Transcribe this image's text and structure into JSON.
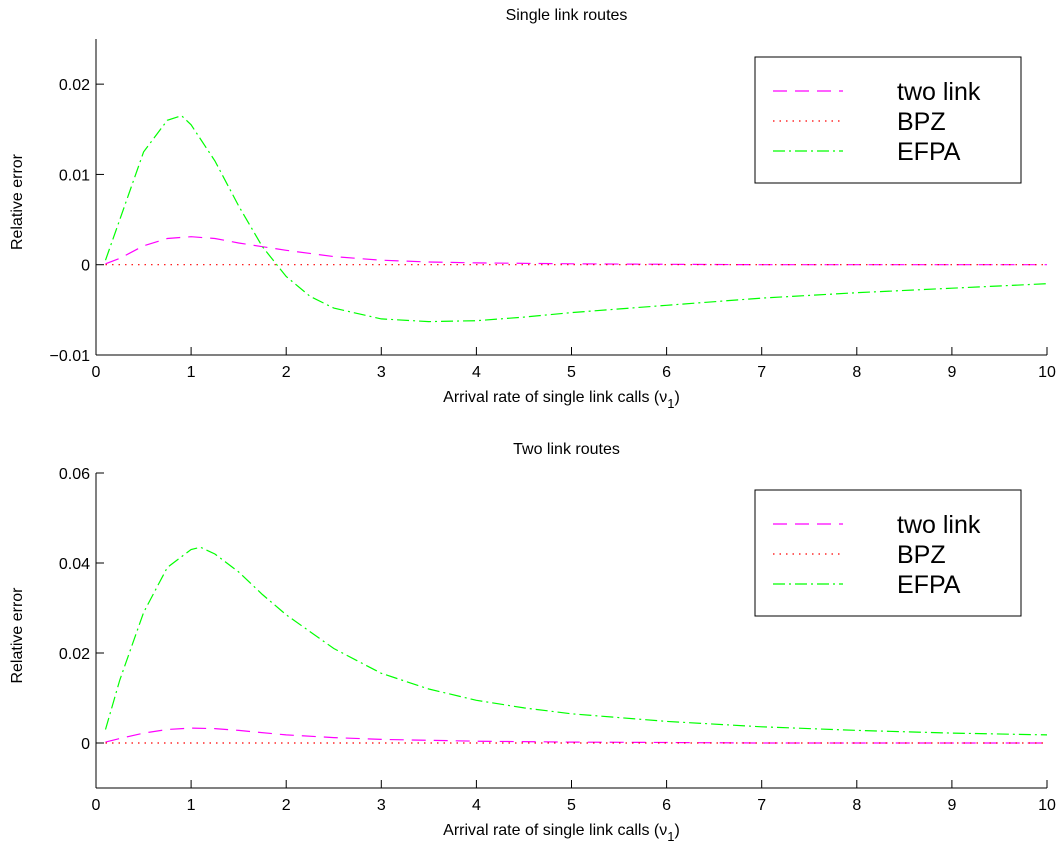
{
  "chart_data": [
    {
      "type": "line",
      "title": "Single link routes",
      "xlabel": "Arrival rate of single link calls (ν",
      "xlabel_sub": "1",
      "xlabel_close": ")",
      "ylabel": "Relative error",
      "xlim": [
        0,
        10
      ],
      "ylim": [
        -0.01,
        0.025
      ],
      "xticks": [
        0,
        1,
        2,
        3,
        4,
        5,
        6,
        7,
        8,
        9,
        10
      ],
      "xtick_labels": [
        "0",
        "1",
        "2",
        "3",
        "4",
        "5",
        "6",
        "7",
        "8",
        "9",
        "10"
      ],
      "yticks": [
        -0.01,
        0,
        0.01,
        0.02
      ],
      "ytick_labels": [
        "−0.01",
        "0",
        "0.01",
        "0.02"
      ],
      "grid": false,
      "legend_position": "top-right",
      "series": [
        {
          "name": "two link",
          "color": "#ff00ff",
          "dash": "dash",
          "x": [
            0.1,
            0.25,
            0.5,
            0.75,
            1.0,
            1.25,
            1.5,
            1.75,
            2.0,
            2.5,
            3.0,
            3.5,
            4.0,
            5.0,
            6.0,
            7.0,
            8.0,
            9.0,
            10.0
          ],
          "y": [
            0.0001,
            0.0007,
            0.0021,
            0.0029,
            0.0031,
            0.0029,
            0.0024,
            0.002,
            0.0016,
            0.0009,
            0.0005,
            0.0003,
            0.0002,
            0.0001,
            5e-05,
            0.0,
            0.0,
            0.0,
            0.0
          ]
        },
        {
          "name": "BPZ",
          "color": "#ff0000",
          "dash": "dot",
          "x": [
            0.1,
            10.0
          ],
          "y": [
            0.0,
            0.0
          ]
        },
        {
          "name": "EFPA",
          "color": "#00ff00",
          "dash": "dashdot",
          "x": [
            0.1,
            0.25,
            0.5,
            0.75,
            0.9,
            1.0,
            1.25,
            1.5,
            1.75,
            2.0,
            2.25,
            2.5,
            3.0,
            3.5,
            4.0,
            4.5,
            5.0,
            6.0,
            7.0,
            8.0,
            9.0,
            10.0
          ],
          "y": [
            0.0005,
            0.005,
            0.0125,
            0.016,
            0.0165,
            0.0155,
            0.0115,
            0.0065,
            0.002,
            -0.0013,
            -0.0035,
            -0.0048,
            -0.006,
            -0.0063,
            -0.0062,
            -0.0058,
            -0.0053,
            -0.0045,
            -0.0037,
            -0.0031,
            -0.0026,
            -0.0021
          ]
        }
      ]
    },
    {
      "type": "line",
      "title": "Two link routes",
      "xlabel": "Arrival rate of single link calls (ν",
      "xlabel_sub": "1",
      "xlabel_close": ")",
      "ylabel": "Relative error",
      "xlim": [
        0,
        10
      ],
      "ylim": [
        -0.01,
        0.06
      ],
      "xticks": [
        0,
        1,
        2,
        3,
        4,
        5,
        6,
        7,
        8,
        9,
        10
      ],
      "xtick_labels": [
        "0",
        "1",
        "2",
        "3",
        "4",
        "5",
        "6",
        "7",
        "8",
        "9",
        "10"
      ],
      "yticks": [
        0,
        0.02,
        0.04,
        0.06
      ],
      "ytick_labels": [
        "0",
        "0.02",
        "0.04",
        "0.06"
      ],
      "grid": false,
      "legend_position": "top-right",
      "series": [
        {
          "name": "two link",
          "color": "#ff00ff",
          "dash": "dash",
          "x": [
            0.1,
            0.25,
            0.5,
            0.75,
            1.0,
            1.25,
            1.5,
            2.0,
            2.5,
            3.0,
            4.0,
            5.0,
            6.0,
            7.0,
            8.0,
            9.0,
            10.0
          ],
          "y": [
            0.0002,
            0.001,
            0.0022,
            0.003,
            0.0033,
            0.0032,
            0.0028,
            0.0018,
            0.0012,
            0.0008,
            0.0004,
            0.0002,
            0.0001,
            0.0,
            0.0,
            0.0,
            0.0
          ]
        },
        {
          "name": "BPZ",
          "color": "#ff0000",
          "dash": "dot",
          "x": [
            0.1,
            10.0
          ],
          "y": [
            0.0,
            0.0
          ]
        },
        {
          "name": "EFPA",
          "color": "#00ff00",
          "dash": "dashdot",
          "x": [
            0.1,
            0.25,
            0.5,
            0.75,
            1.0,
            1.1,
            1.25,
            1.5,
            1.75,
            2.0,
            2.5,
            3.0,
            3.5,
            4.0,
            4.5,
            5.0,
            6.0,
            7.0,
            8.0,
            9.0,
            10.0
          ],
          "y": [
            0.003,
            0.014,
            0.029,
            0.039,
            0.043,
            0.0435,
            0.042,
            0.038,
            0.033,
            0.0285,
            0.021,
            0.0155,
            0.012,
            0.0095,
            0.0078,
            0.0065,
            0.0048,
            0.0036,
            0.0028,
            0.0022,
            0.0018
          ]
        }
      ]
    }
  ]
}
